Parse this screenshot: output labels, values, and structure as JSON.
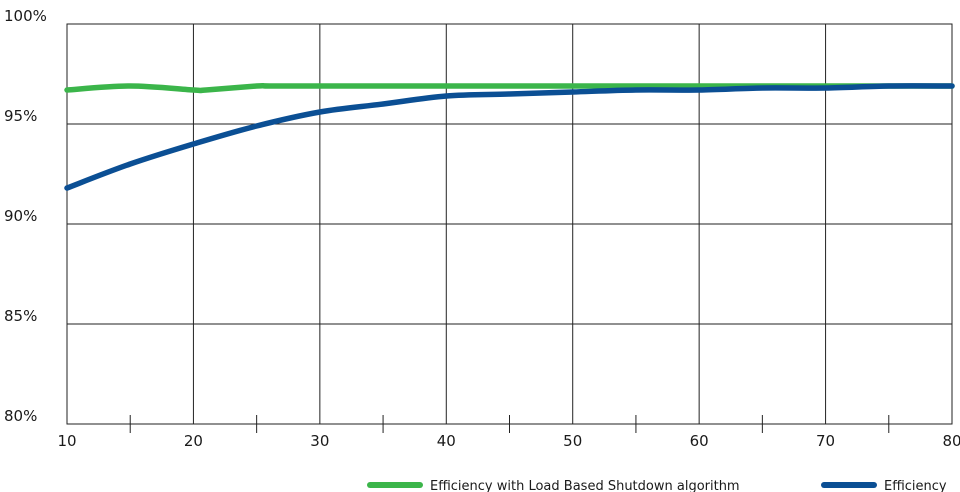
{
  "chart_data": {
    "type": "line",
    "title": "",
    "xlabel": "",
    "ylabel": "",
    "xlim": [
      10,
      80
    ],
    "ylim": [
      80,
      100
    ],
    "x_ticks": [
      10,
      20,
      30,
      40,
      50,
      60,
      70,
      80
    ],
    "x_tick_labels": [
      "10",
      "20",
      "30",
      "40",
      "50",
      "60",
      "70",
      "80"
    ],
    "y_ticks": [
      80,
      85,
      90,
      95,
      100
    ],
    "y_tick_labels": [
      "80%",
      "85%",
      "90%",
      "95%",
      "100%"
    ],
    "grid": true,
    "legend_position": "bottom",
    "series": [
      {
        "name": "Efficiency with Load Based Shutdown algorithm",
        "color": "#3bb54a",
        "x": [
          10,
          15,
          20,
          21,
          25,
          26,
          30,
          40,
          50,
          60,
          70,
          80
        ],
        "y": [
          96.7,
          96.9,
          96.7,
          96.7,
          96.9,
          96.9,
          96.9,
          96.9,
          96.9,
          96.9,
          96.9,
          96.9
        ]
      },
      {
        "name": "Efficiency",
        "color": "#0b4f94",
        "x": [
          10,
          15,
          20,
          25,
          30,
          35,
          40,
          45,
          50,
          55,
          60,
          65,
          70,
          75,
          80
        ],
        "y": [
          91.8,
          93.0,
          94.0,
          94.9,
          95.6,
          96.0,
          96.4,
          96.5,
          96.6,
          96.7,
          96.7,
          96.8,
          96.8,
          96.9,
          96.9
        ]
      }
    ]
  }
}
